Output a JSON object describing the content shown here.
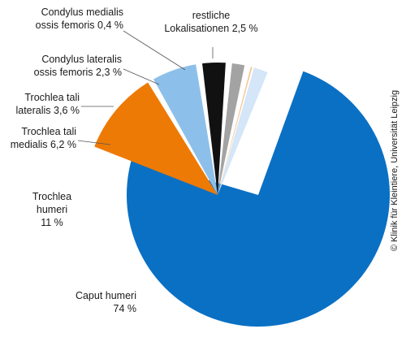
{
  "chart_data": {
    "type": "pie",
    "title": "",
    "slices": [
      {
        "label": [
          "Caput humeri",
          "74 %"
        ],
        "value": 74,
        "color": "#0a70c4"
      },
      {
        "label": [
          "Trochlea",
          "humeri",
          "11 %"
        ],
        "value": 11,
        "color": "#ee7a06"
      },
      {
        "label": [
          "Trochlea tali",
          "medialis 6,2 %"
        ],
        "value": 6.2,
        "color": "#8cc0ea"
      },
      {
        "label": [
          "Trochlea tali",
          "lateralis 3,6 %"
        ],
        "value": 3.6,
        "color": "#111111"
      },
      {
        "label": [
          "Condylus lateralis",
          "ossis femoris 2,3 %"
        ],
        "value": 2.3,
        "color": "#a3a3a3"
      },
      {
        "label": [
          "Condylus medialis",
          "ossis femoris 0,4 %"
        ],
        "value": 0.4,
        "color": "#f6c38f"
      },
      {
        "label": [
          "restliche",
          "Lokalisationen 2,5 %"
        ],
        "value": 2.5,
        "color": "#d4e6f7"
      }
    ]
  },
  "credit": "© Klinik für Kleintiere, Universität Leipzig"
}
